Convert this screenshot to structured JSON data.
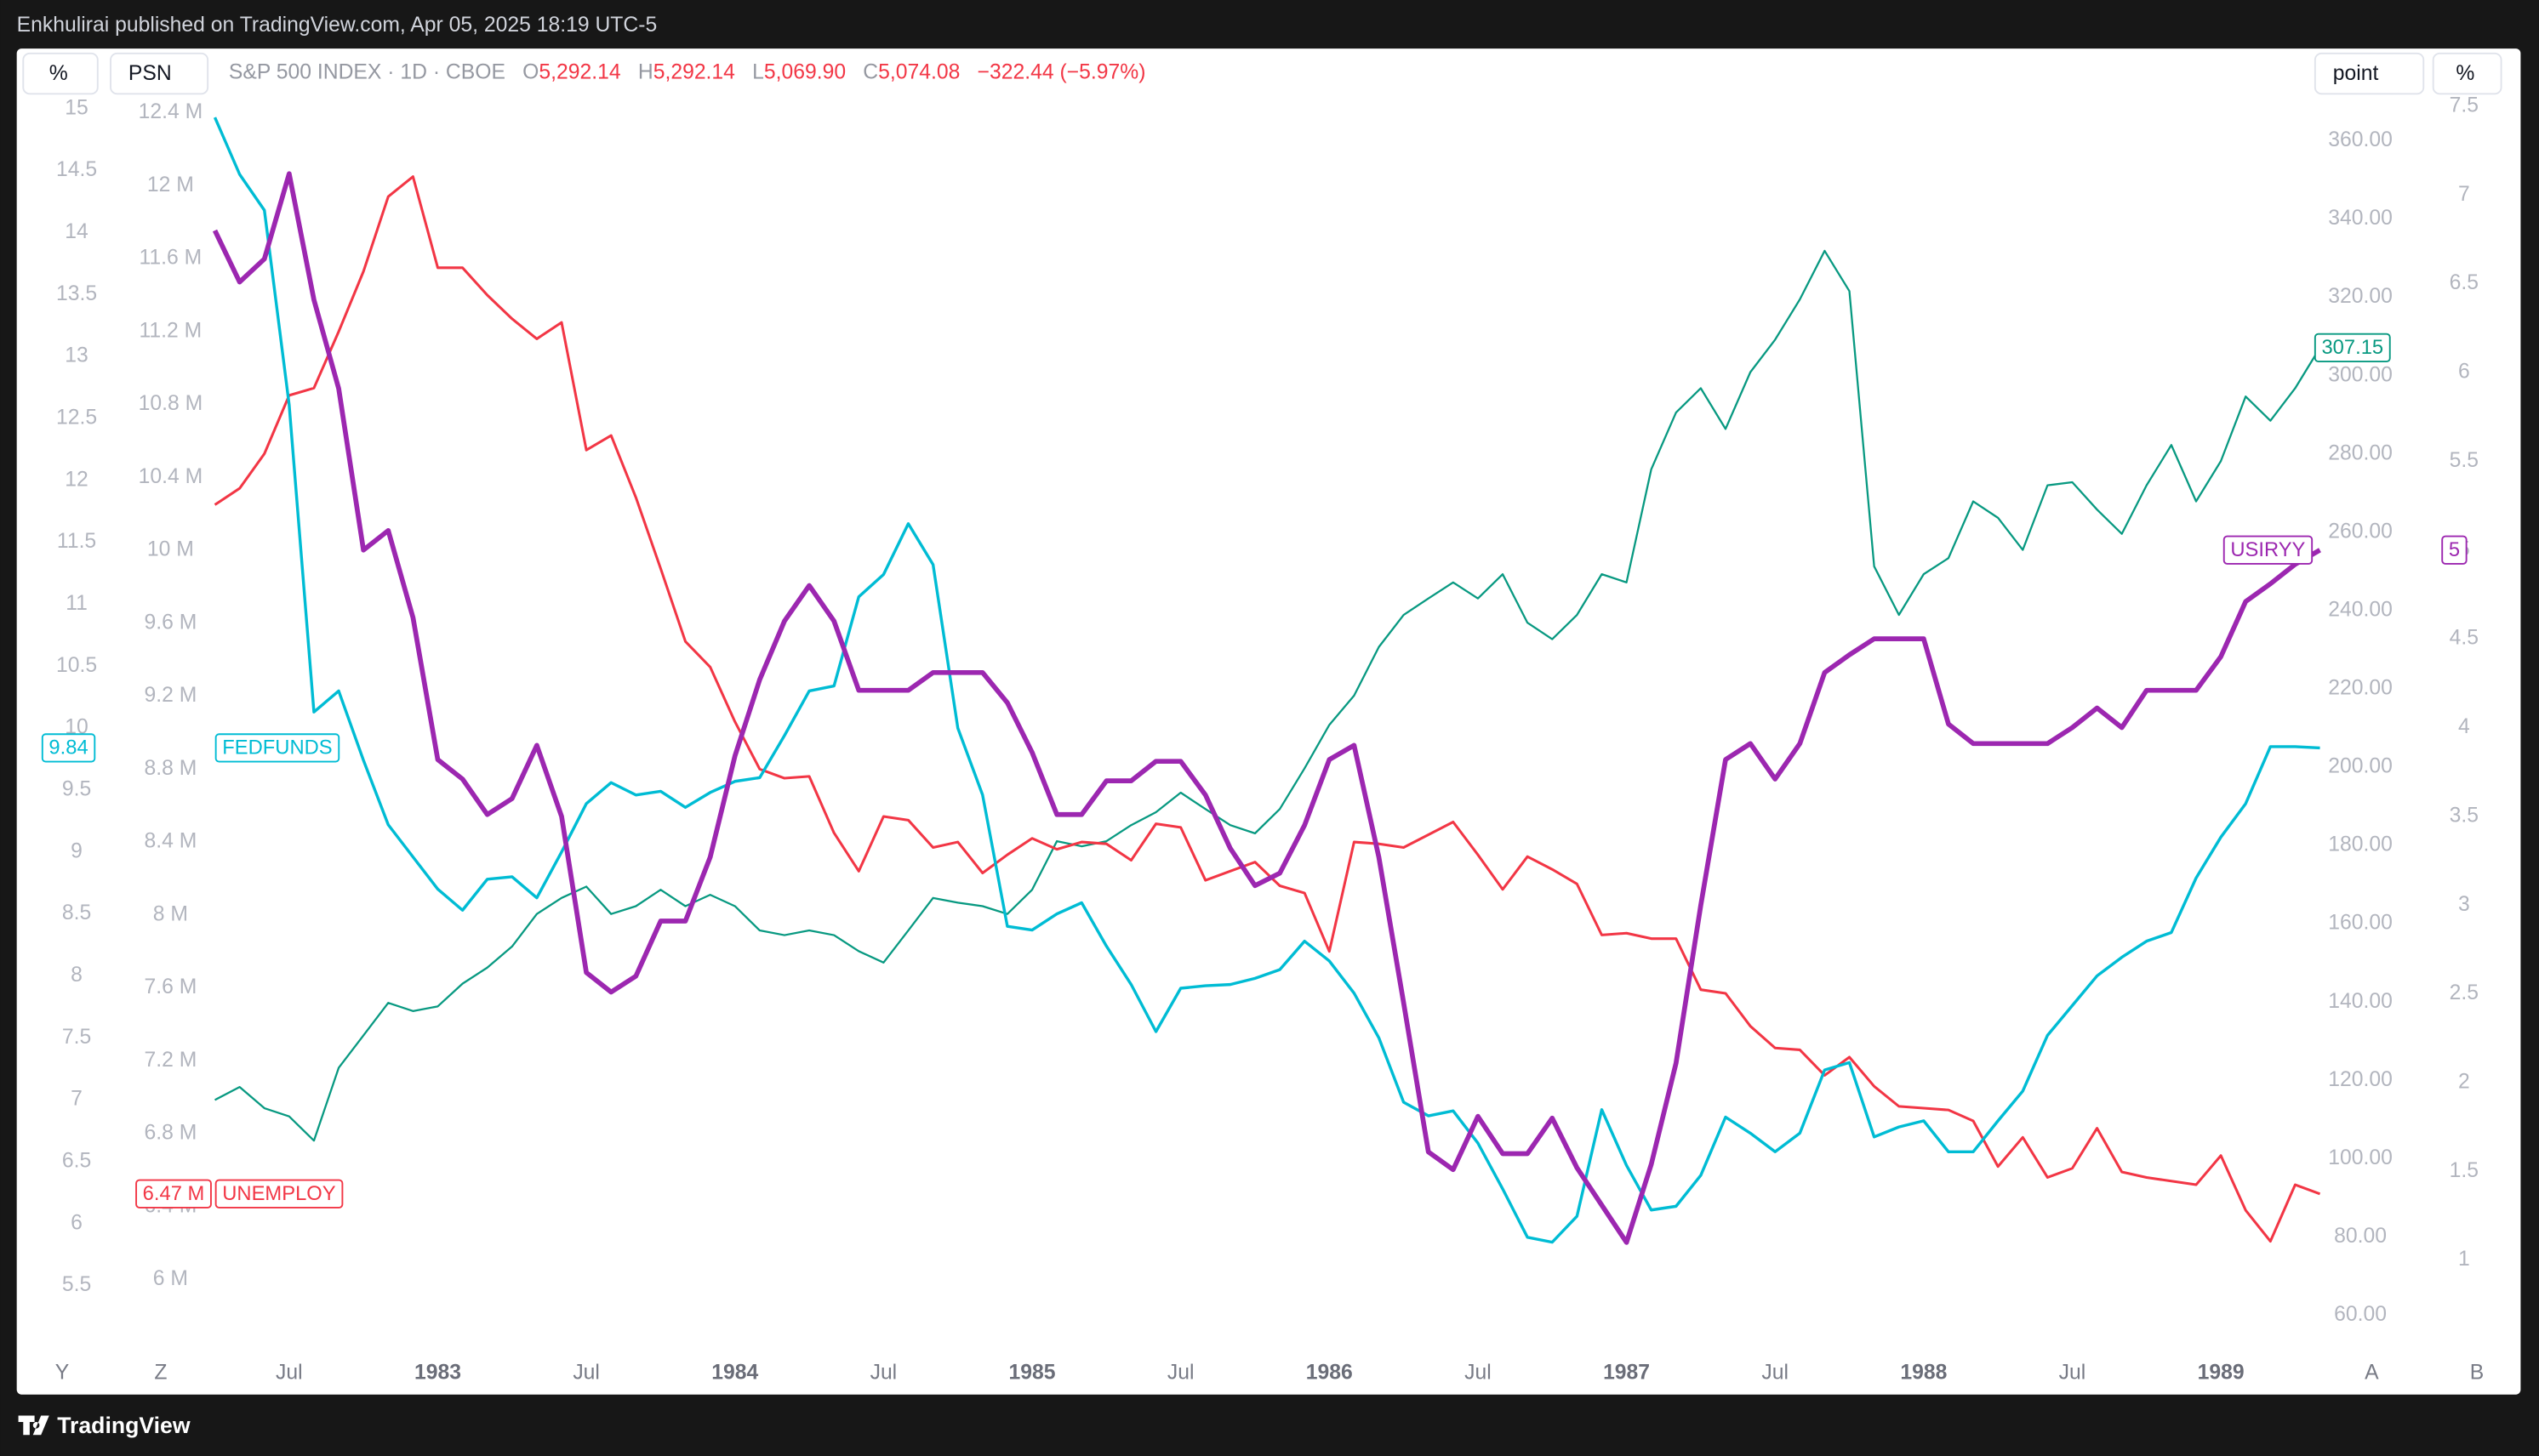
{
  "header": {
    "publisher": "Enkhulirai published on TradingView.com, Apr 05, 2025 18:19 UTC-5"
  },
  "toolbar": {
    "left_scale_1": "%",
    "left_scale_2": "PSN",
    "right_scale_1": "point",
    "right_scale_2": "%"
  },
  "legend": {
    "ohlc": [
      {
        "key": "O",
        "value": "5,292.14"
      },
      {
        "key": "H",
        "value": "5,292.14"
      },
      {
        "key": "L",
        "value": "5,069.90"
      },
      {
        "key": "C",
        "value": "5,074.08"
      }
    ],
    "change": "−322.44 (−5.97%)"
  },
  "scale_buttons": {
    "left": [
      "Y",
      "Z"
    ],
    "right": [
      "A",
      "B"
    ]
  },
  "footer": {
    "brand": "TradingView"
  },
  "chart_data": {
    "type": "line",
    "grid": false,
    "x": [
      "1982-04",
      "1982-05",
      "1982-06",
      "1982-07",
      "1982-08",
      "1982-09",
      "1982-10",
      "1982-11",
      "1982-12",
      "1983-01",
      "1983-02",
      "1983-03",
      "1983-04",
      "1983-05",
      "1983-06",
      "1983-07",
      "1983-08",
      "1983-09",
      "1983-10",
      "1983-11",
      "1983-12",
      "1984-01",
      "1984-02",
      "1984-03",
      "1984-04",
      "1984-05",
      "1984-06",
      "1984-07",
      "1984-08",
      "1984-09",
      "1984-10",
      "1984-11",
      "1984-12",
      "1985-01",
      "1985-02",
      "1985-03",
      "1985-04",
      "1985-05",
      "1985-06",
      "1985-07",
      "1985-08",
      "1985-09",
      "1985-10",
      "1985-11",
      "1985-12",
      "1986-01",
      "1986-02",
      "1986-03",
      "1986-04",
      "1986-05",
      "1986-06",
      "1986-07",
      "1986-08",
      "1986-09",
      "1986-10",
      "1986-11",
      "1986-12",
      "1987-01",
      "1987-02",
      "1987-03",
      "1987-04",
      "1987-05",
      "1987-06",
      "1987-07",
      "1987-08",
      "1987-09",
      "1987-10",
      "1987-11",
      "1987-12",
      "1988-01",
      "1988-02",
      "1988-03",
      "1988-04",
      "1988-05",
      "1988-06",
      "1988-07",
      "1988-08",
      "1988-09",
      "1988-10",
      "1988-11",
      "1988-12",
      "1989-01",
      "1989-02",
      "1989-03",
      "1989-04",
      "1989-05"
    ],
    "xlim": [
      "1981-08",
      "1989-05"
    ],
    "xticks": [
      {
        "value": "1982-07",
        "label": "Jul"
      },
      {
        "value": "1983-01",
        "label": "1983"
      },
      {
        "value": "1983-07",
        "label": "Jul"
      },
      {
        "value": "1984-01",
        "label": "1984"
      },
      {
        "value": "1984-07",
        "label": "Jul"
      },
      {
        "value": "1985-01",
        "label": "1985"
      },
      {
        "value": "1985-07",
        "label": "Jul"
      },
      {
        "value": "1986-01",
        "label": "1986"
      },
      {
        "value": "1986-07",
        "label": "Jul"
      },
      {
        "value": "1987-01",
        "label": "1987"
      },
      {
        "value": "1987-07",
        "label": "Jul"
      },
      {
        "value": "1988-01",
        "label": "1988"
      },
      {
        "value": "1988-07",
        "label": "Jul"
      },
      {
        "value": "1989-01",
        "label": "1989"
      }
    ],
    "ylim": [
      4.96,
      15.12
    ],
    "yticks": [
      5.5,
      6,
      6.5,
      7,
      7.5,
      8,
      8.5,
      9,
      9.5,
      10,
      10.5,
      11,
      11.5,
      12,
      12.5,
      13,
      13.5,
      14,
      14.5,
      15
    ],
    "y3lim": [
      5600000,
      12504000
    ],
    "y3ticks": [
      {
        "value": 6000000,
        "label": "6 M"
      },
      {
        "value": 6400000,
        "label": "6.4 M"
      },
      {
        "value": 6800000,
        "label": "6.8 M"
      },
      {
        "value": 7200000,
        "label": "7.2 M"
      },
      {
        "value": 7600000,
        "label": "7.6 M"
      },
      {
        "value": 8000000,
        "label": "8 M"
      },
      {
        "value": 8400000,
        "label": "8.4 M"
      },
      {
        "value": 8800000,
        "label": "8.8 M"
      },
      {
        "value": 9200000,
        "label": "9.2 M"
      },
      {
        "value": 9600000,
        "label": "9.6 M"
      },
      {
        "value": 10000000,
        "label": "10 M"
      },
      {
        "value": 10400000,
        "label": "10.4 M"
      },
      {
        "value": 10800000,
        "label": "10.8 M"
      },
      {
        "value": 11200000,
        "label": "11.2 M"
      },
      {
        "value": 11600000,
        "label": "11.6 M"
      },
      {
        "value": 12000000,
        "label": "12 M"
      },
      {
        "value": 12400000,
        "label": "12.4 M"
      }
    ],
    "y2lim": [
      50.5,
      372
    ],
    "y2ticks": [
      {
        "value": 60,
        "label": "60.00"
      },
      {
        "value": 80,
        "label": "80.00"
      },
      {
        "value": 100,
        "label": "100.00"
      },
      {
        "value": 120,
        "label": "120.00"
      },
      {
        "value": 140,
        "label": "140.00"
      },
      {
        "value": 160,
        "label": "160.00"
      },
      {
        "value": 180,
        "label": "180.00"
      },
      {
        "value": 200,
        "label": "200.00"
      },
      {
        "value": 220,
        "label": "220.00"
      },
      {
        "value": 240,
        "label": "240.00"
      },
      {
        "value": 260,
        "label": "260.00"
      },
      {
        "value": 280,
        "label": "280.00"
      },
      {
        "value": 300,
        "label": "300.00"
      },
      {
        "value": 320,
        "label": "320.00"
      },
      {
        "value": 340,
        "label": "340.00"
      },
      {
        "value": 360,
        "label": "360.00"
      }
    ],
    "y4lim": [
      0.48,
      7.57
    ],
    "y4ticks": [
      1,
      1.5,
      2,
      2.5,
      3,
      3.5,
      4,
      4.5,
      5,
      5.5,
      6,
      6.5,
      7,
      7.5
    ],
    "series": [
      {
        "name": "S&P 500 INDEX · 1D · CBOE",
        "color": "#089981",
        "axis": "y2",
        "values": [
          115,
          118.3,
          112.9,
          110.8,
          104.6,
          123.2,
          131.5,
          139.8,
          137.7,
          138.9,
          144.7,
          148.8,
          154.2,
          162.5,
          166.6,
          169.5,
          162.5,
          164.5,
          168.7,
          164.5,
          167.4,
          164.5,
          158.3,
          157.1,
          158.3,
          157.1,
          153,
          150.1,
          158.3,
          166.6,
          165.4,
          164.5,
          162.5,
          168.7,
          181.1,
          179.8,
          181.1,
          185.2,
          188.5,
          193.5,
          189.3,
          185.2,
          183.1,
          189.3,
          199.7,
          210.8,
          218.3,
          230.7,
          238.9,
          243.1,
          247.2,
          243.1,
          249.3,
          236.9,
          232.7,
          238.9,
          249.3,
          247.2,
          276.1,
          290.6,
          296.8,
          286.4,
          300.9,
          309.2,
          319.5,
          331.9,
          321.6,
          251.3,
          238.9,
          249.3,
          253.4,
          267.9,
          263.7,
          255.5,
          272,
          272.8,
          265.8,
          259.6,
          272,
          282.3,
          267.9,
          278.2,
          294.7,
          288.5,
          296.8,
          307.15
        ]
      },
      {
        "name": "UNEMPLOY",
        "color": "#f23645",
        "axis": "y3",
        "last_value_label": "6.47 M",
        "values": [
          10250000,
          10340000,
          10530000,
          10850000,
          10890000,
          11200000,
          11530000,
          11940000,
          12050000,
          11550000,
          11550000,
          11400000,
          11270000,
          11160000,
          11250000,
          10550000,
          10630000,
          10290000,
          9900000,
          9500000,
          9360000,
          9060000,
          8800000,
          8750000,
          8760000,
          8450000,
          8240000,
          8540000,
          8520000,
          8370000,
          8400000,
          8230000,
          8330000,
          8420000,
          8360000,
          8400000,
          8390000,
          8300000,
          8500000,
          8480000,
          8190000,
          8240000,
          8290000,
          8160000,
          8120000,
          7800000,
          8400000,
          8390000,
          8370000,
          8440000,
          8510000,
          8330000,
          8140000,
          8320000,
          8250000,
          8170000,
          7890000,
          7900000,
          7870000,
          7870000,
          7590000,
          7570000,
          7390000,
          7270000,
          7260000,
          7120000,
          7220000,
          7060000,
          6950000,
          6940000,
          6930000,
          6870000,
          6620000,
          6780000,
          6560000,
          6610000,
          6830000,
          6590000,
          6560000,
          6540000,
          6520000,
          6680000,
          6380000,
          6210000,
          6520000,
          6470000
        ]
      },
      {
        "name": "FEDFUNDS",
        "color": "#00bcd4",
        "axis": "y",
        "values": [
          14.93,
          14.47,
          14.18,
          12.61,
          10.13,
          10.3,
          9.74,
          9.22,
          8.96,
          8.7,
          8.53,
          8.78,
          8.8,
          8.63,
          9,
          9.39,
          9.56,
          9.46,
          9.49,
          9.36,
          9.48,
          9.57,
          9.6,
          9.94,
          10.3,
          10.34,
          11.06,
          11.24,
          11.65,
          11.32,
          10,
          9.46,
          8.4,
          8.37,
          8.5,
          8.59,
          8.24,
          7.93,
          7.55,
          7.9,
          7.92,
          7.93,
          7.98,
          8.05,
          8.28,
          8.12,
          7.86,
          7.5,
          6.98,
          6.87,
          6.91,
          6.65,
          6.28,
          5.89,
          5.85,
          6.06,
          6.92,
          6.47,
          6.11,
          6.14,
          6.39,
          6.86,
          6.73,
          6.58,
          6.73,
          7.24,
          7.3,
          6.7,
          6.78,
          6.83,
          6.58,
          6.58,
          6.83,
          7.07,
          7.52,
          7.76,
          8,
          8.15,
          8.28,
          8.35,
          8.79,
          9.12,
          9.39,
          9.85,
          9.85,
          9.84
        ]
      },
      {
        "name": "USIRYY",
        "color": "#9c27b0",
        "axis": "y4",
        "values": [
          6.8,
          6.51,
          6.64,
          7.12,
          6.41,
          5.91,
          5,
          5.11,
          4.62,
          3.82,
          3.71,
          3.51,
          3.6,
          3.9,
          3.5,
          2.62,
          2.51,
          2.6,
          2.91,
          2.91,
          3.27,
          3.84,
          4.27,
          4.6,
          4.8,
          4.6,
          4.21,
          4.21,
          4.21,
          4.31,
          4.31,
          4.31,
          4.14,
          3.86,
          3.51,
          3.51,
          3.7,
          3.7,
          3.81,
          3.81,
          3.62,
          3.32,
          3.11,
          3.18,
          3.45,
          3.82,
          3.9,
          3.27,
          2.45,
          1.61,
          1.51,
          1.81,
          1.6,
          1.6,
          1.8,
          1.52,
          1.31,
          1.1,
          1.54,
          2.11,
          3,
          3.82,
          3.91,
          3.71,
          3.91,
          4.31,
          4.41,
          4.5,
          4.5,
          4.5,
          4.02,
          3.91,
          3.91,
          3.91,
          3.91,
          4,
          4.11,
          4,
          4.21,
          4.21,
          4.21,
          4.4,
          4.71,
          4.81,
          4.92,
          5
        ]
      }
    ]
  }
}
